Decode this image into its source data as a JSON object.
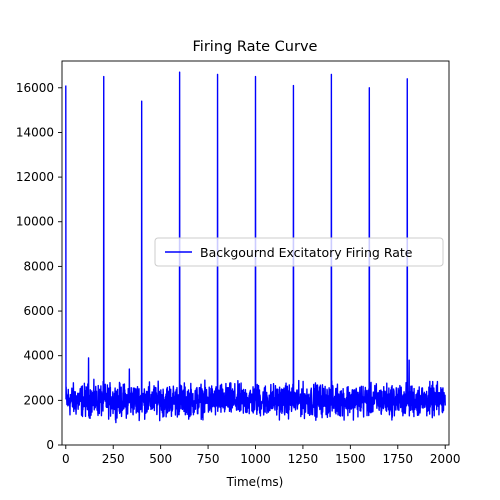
{
  "chart_data": {
    "type": "line",
    "title": "Firing Rate Curve",
    "xlabel": "Time(ms)",
    "ylabel": "",
    "xlim": [
      -20,
      2020
    ],
    "ylim": [
      0,
      17200
    ],
    "grid": false,
    "legend_position": "center-right",
    "color": "#0000ff",
    "x_ticks": [
      0,
      250,
      500,
      750,
      1000,
      1250,
      1500,
      1750,
      2000
    ],
    "x_tick_labels": [
      "0",
      "250",
      "500",
      "750",
      "1000",
      "1250",
      "1500",
      "1750",
      "2000"
    ],
    "y_ticks": [
      0,
      2000,
      4000,
      6000,
      8000,
      10000,
      12000,
      14000,
      16000
    ],
    "y_tick_labels": [
      "0",
      "2000",
      "4000",
      "6000",
      "8000",
      "10000",
      "12000",
      "14000",
      "16000"
    ],
    "series": [
      {
        "name": "Backgournd Excitatory Firing Rate",
        "baseline_mean": 2000,
        "noise_range": [
          800,
          3000
        ],
        "x_range": [
          0,
          2000
        ],
        "peaks": [
          {
            "x": 0,
            "y": 16100
          },
          {
            "x": 200,
            "y": 16500
          },
          {
            "x": 400,
            "y": 15400
          },
          {
            "x": 600,
            "y": 16700
          },
          {
            "x": 800,
            "y": 16600
          },
          {
            "x": 1000,
            "y": 16500
          },
          {
            "x": 1200,
            "y": 16100
          },
          {
            "x": 1400,
            "y": 16600
          },
          {
            "x": 1600,
            "y": 16000
          },
          {
            "x": 1800,
            "y": 16400
          }
        ],
        "secondary_bumps": [
          {
            "x": 120,
            "y": 3900
          },
          {
            "x": 335,
            "y": 3400
          },
          {
            "x": 1810,
            "y": 3800
          }
        ]
      }
    ]
  }
}
